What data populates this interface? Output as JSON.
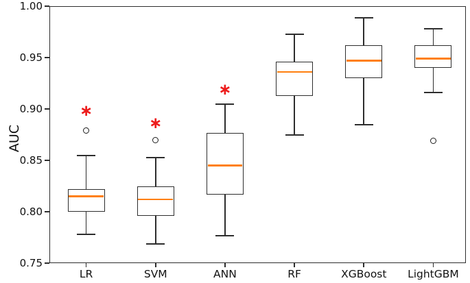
{
  "chart_data": {
    "type": "boxplot",
    "title": "",
    "xlabel": "",
    "ylabel": "AUC",
    "ylim": [
      0.75,
      1.0
    ],
    "grid": false,
    "legend_position": "none",
    "yticks": [
      {
        "value": 1.0,
        "label": "1.00"
      },
      {
        "value": 0.95,
        "label": "0.95"
      },
      {
        "value": 0.9,
        "label": "0.90"
      },
      {
        "value": 0.85,
        "label": "0.85"
      },
      {
        "value": 0.8,
        "label": "0.80"
      },
      {
        "value": 0.75,
        "label": "0.75"
      }
    ],
    "categories": [
      "LR",
      "SVM",
      "ANN",
      "RF",
      "XGBoost",
      "LightGBM"
    ],
    "series": [
      {
        "name": "LR",
        "whisker_low": 0.778,
        "q1": 0.8,
        "median": 0.815,
        "q3": 0.822,
        "whisker_high": 0.855,
        "outliers": [
          0.879
        ],
        "significance_marker": 0.898
      },
      {
        "name": "SVM",
        "whisker_low": 0.769,
        "q1": 0.796,
        "median": 0.812,
        "q3": 0.825,
        "whisker_high": 0.853,
        "outliers": [
          0.87
        ],
        "significance_marker": 0.886
      },
      {
        "name": "ANN",
        "whisker_low": 0.777,
        "q1": 0.817,
        "median": 0.845,
        "q3": 0.877,
        "whisker_high": 0.905,
        "outliers": [],
        "significance_marker": 0.919
      },
      {
        "name": "RF",
        "whisker_low": 0.875,
        "q1": 0.913,
        "median": 0.936,
        "q3": 0.946,
        "whisker_high": 0.973,
        "outliers": [],
        "significance_marker": null
      },
      {
        "name": "XGBoost",
        "whisker_low": 0.885,
        "q1": 0.93,
        "median": 0.947,
        "q3": 0.962,
        "whisker_high": 0.989,
        "outliers": [],
        "significance_marker": null
      },
      {
        "name": "LightGBM",
        "whisker_low": 0.916,
        "q1": 0.94,
        "median": 0.949,
        "q3": 0.962,
        "whisker_high": 0.978,
        "outliers": [
          0.869
        ],
        "significance_marker": null
      }
    ],
    "significance_glyph": "∗",
    "colors": {
      "median": "#ff7f0e",
      "box_edge": "#2d2d2d",
      "significance": "#ed1c1c",
      "background": "#ffffff",
      "tick_text": "#111111"
    }
  }
}
